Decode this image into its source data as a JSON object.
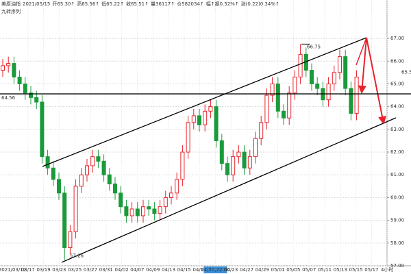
{
  "chart_data": {
    "type": "candlestick",
    "header": [
      "美原油指",
      "2021/05/15",
      "开65.30↑",
      "高65.56↑",
      "低65.22↑",
      "收65.51↑",
      "量36117↑",
      "仓582034↑",
      "幅↑振0.52%↑",
      "涨(0.22)0.34%↑"
    ],
    "indicator": "九转序列",
    "categories": [
      "2021/03/12",
      "03/17",
      "03/19",
      "03/23",
      "03/25",
      "03/27",
      "03/31",
      "04/02",
      "04/07",
      "04/09",
      "04/13",
      "04/15",
      "04/17",
      "04/20,22:00",
      "04/23",
      "04/27",
      "04/29",
      "05/01",
      "05/05",
      "05/07",
      "05/11",
      "05/13",
      "05/15",
      "05/17",
      "4小时"
    ],
    "open": [
      65.6,
      65.8,
      65.9,
      65.3,
      65.0,
      64.6,
      64.4,
      64.2,
      61.8,
      61.3,
      60.8,
      60.2,
      57.8,
      58.5,
      60.5,
      61.0,
      61.4,
      61.8,
      61.6,
      61.0,
      60.6,
      60.2,
      59.6,
      59.2,
      59.5,
      59.2,
      59.6,
      59.5,
      59.3,
      59.6,
      60.0,
      60.2,
      60.8,
      62.0,
      63.3,
      63.6,
      63.2,
      63.8,
      64.0,
      62.5,
      61.5,
      61.0,
      61.8,
      62.0,
      61.3,
      61.8,
      62.6,
      63.3,
      64.5,
      65.0,
      63.8,
      63.5,
      64.6,
      65.3,
      66.3,
      65.6,
      65.0,
      64.8,
      64.3,
      65.0,
      65.5,
      66.2,
      64.8,
      63.7
    ],
    "high": [
      66.1,
      66.2,
      66.2,
      65.6,
      65.3,
      64.9,
      64.7,
      64.5,
      62.1,
      61.6,
      61.1,
      60.5,
      58.8,
      60.8,
      61.3,
      61.7,
      62.1,
      62.1,
      61.9,
      61.3,
      60.9,
      60.5,
      59.9,
      59.8,
      59.8,
      59.9,
      59.9,
      59.8,
      59.9,
      60.3,
      60.5,
      61.1,
      62.3,
      63.6,
      63.9,
      63.9,
      64.1,
      64.3,
      64.3,
      62.8,
      61.8,
      62.1,
      62.3,
      62.3,
      62.1,
      62.9,
      63.6,
      64.8,
      65.3,
      65.3,
      64.1,
      64.9,
      65.6,
      66.75,
      66.6,
      65.9,
      65.3,
      65.1,
      65.3,
      65.8,
      66.5,
      66.5,
      65.1,
      65.6
    ],
    "low": [
      65.3,
      65.5,
      65.0,
      64.7,
      64.3,
      64.1,
      63.9,
      61.5,
      61.0,
      60.5,
      59.9,
      57.26,
      57.5,
      58.2,
      60.2,
      60.7,
      61.1,
      61.3,
      60.7,
      60.3,
      59.9,
      59.3,
      58.9,
      58.9,
      58.9,
      58.9,
      59.2,
      59.0,
      59.0,
      59.3,
      59.7,
      59.9,
      60.5,
      61.7,
      63.0,
      62.9,
      62.9,
      63.5,
      62.2,
      61.2,
      60.7,
      60.7,
      61.5,
      61.0,
      61.0,
      61.5,
      62.3,
      63.0,
      64.2,
      63.5,
      63.2,
      63.2,
      64.3,
      65.0,
      65.3,
      64.7,
      64.5,
      64.0,
      64.0,
      64.7,
      65.2,
      64.5,
      63.4,
      63.4
    ],
    "close": [
      65.8,
      65.9,
      65.3,
      65.0,
      64.6,
      64.4,
      64.2,
      61.8,
      61.3,
      60.8,
      60.2,
      57.8,
      58.5,
      60.5,
      61.0,
      61.4,
      61.8,
      61.6,
      61.0,
      60.6,
      60.2,
      59.6,
      59.2,
      59.5,
      59.2,
      59.6,
      59.5,
      59.3,
      59.6,
      60.0,
      60.2,
      60.8,
      62.0,
      63.3,
      63.6,
      63.2,
      63.8,
      64.0,
      62.5,
      61.5,
      61.0,
      61.8,
      62.0,
      61.3,
      61.8,
      62.6,
      63.3,
      64.5,
      65.0,
      63.8,
      63.5,
      64.6,
      65.3,
      66.3,
      65.6,
      65.0,
      64.8,
      64.3,
      65.0,
      65.5,
      66.2,
      64.8,
      63.7,
      65.3
    ],
    "up_color": "#e8202a",
    "down_color": "#1a9a3a",
    "ylim": [
      57,
      68.69
    ],
    "yticks": [
      {
        "value": 57,
        "label": "57.00"
      },
      {
        "value": 58,
        "label": "58.00"
      },
      {
        "value": 59,
        "label": "59.00"
      },
      {
        "value": 60,
        "label": "60.00"
      },
      {
        "value": 61,
        "label": "61.00"
      },
      {
        "value": 62,
        "label": "62.00"
      },
      {
        "value": 63,
        "label": "63.00"
      },
      {
        "value": 64,
        "label": "64.00"
      },
      {
        "value": 65,
        "label": "65.00"
      },
      {
        "value": 66,
        "label": "66.00"
      },
      {
        "value": 67,
        "label": "67.00"
      }
    ],
    "level": 64.56,
    "high_label": 66.75,
    "low_label": 57.26,
    "last_price": 65.51,
    "grid": true
  }
}
